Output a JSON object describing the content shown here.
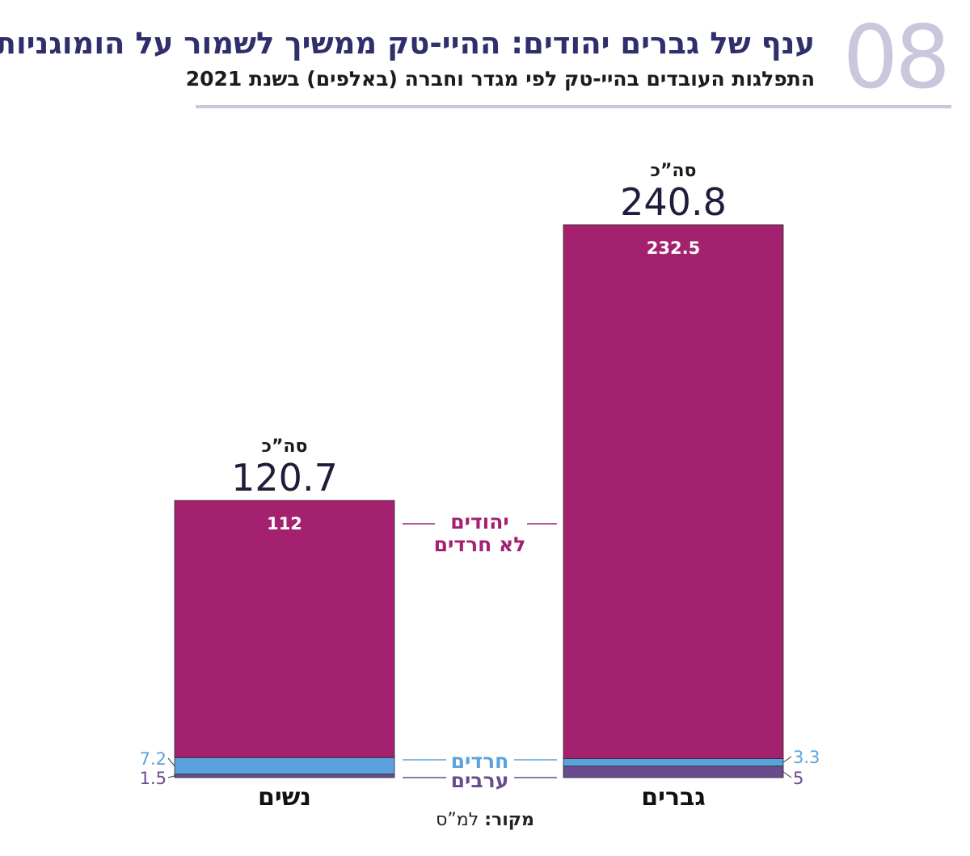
{
  "header": {
    "number": "08",
    "title": "ענף של גברים יהודים: ההיי-טק ממשיך לשמור על הומוגניות",
    "subtitle": "התפלגות העובדים בהיי-טק לפי מגדר וחברה (באלפים) בשנת 2021"
  },
  "source": {
    "label": "מקור:",
    "value": "למ”ס"
  },
  "colors": {
    "jews_non_haredi": "#a3216f",
    "haredim": "#5ba2dc",
    "arabs": "#6a4b8e",
    "header_number": "#c8c7dc",
    "title": "#2f2f6c"
  },
  "chart_data": {
    "type": "bar",
    "stacked": true,
    "unit": "thousands",
    "categories": [
      "נשים",
      "גברים"
    ],
    "total_label": "סה”כ",
    "totals": [
      120.7,
      240.8
    ],
    "series": [
      {
        "name": "יהודים לא חרדים",
        "name_lines": [
          "יהודים",
          "לא חרדים"
        ],
        "values": [
          112,
          232.5
        ],
        "color": "#a3216f"
      },
      {
        "name": "חרדים",
        "values": [
          7.2,
          3.3
        ],
        "color": "#5ba2dc"
      },
      {
        "name": "ערבים",
        "values": [
          1.5,
          5
        ],
        "color": "#6a4b8e"
      }
    ],
    "value_labels": {
      "jews_non_haredi": [
        "112",
        "232.5"
      ],
      "haredim": [
        "7.2",
        "3.3"
      ],
      "arabs": [
        "1.5",
        "5"
      ]
    }
  }
}
